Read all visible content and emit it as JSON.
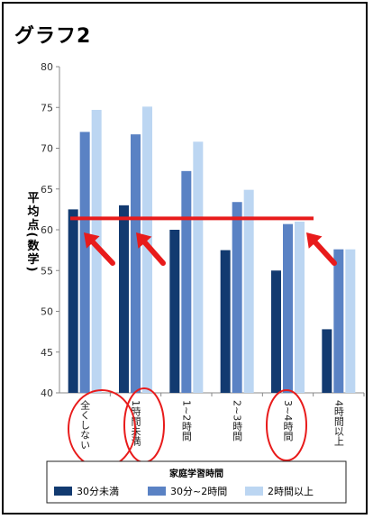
{
  "heading": "グラフ2",
  "colors": {
    "series_dark": "#123a70",
    "series_mid": "#5a82c4",
    "series_light": "#bcd6f2",
    "annotation_red": "#e81b1b",
    "axis": "#888888"
  },
  "chart_data": {
    "type": "bar",
    "ylabel": "平均点(数学)",
    "ylim": [
      40,
      80
    ],
    "yticks": [
      40,
      45,
      50,
      55,
      60,
      65,
      70,
      75,
      80
    ],
    "categories": [
      "全くしない",
      "1時間未満",
      "1~2時間",
      "2~3時間",
      "3~4時間",
      "4時間以上"
    ],
    "legend_title": "家庭学習時間",
    "series": [
      {
        "name": "30分未満",
        "values": [
          62.5,
          63.0,
          60.0,
          57.5,
          55.0,
          47.8
        ]
      },
      {
        "name": "30分~2時間",
        "values": [
          72.0,
          71.7,
          67.2,
          63.4,
          60.7,
          57.6
        ]
      },
      {
        "name": "2時間以上",
        "values": [
          74.7,
          75.1,
          70.8,
          64.9,
          61.0,
          57.6
        ]
      }
    ],
    "reference_line": 61.4,
    "circled_categories": [
      0,
      1,
      4
    ],
    "arrowed_categories": [
      0,
      1,
      4
    ],
    "grid": false,
    "legend_position": "bottom"
  }
}
